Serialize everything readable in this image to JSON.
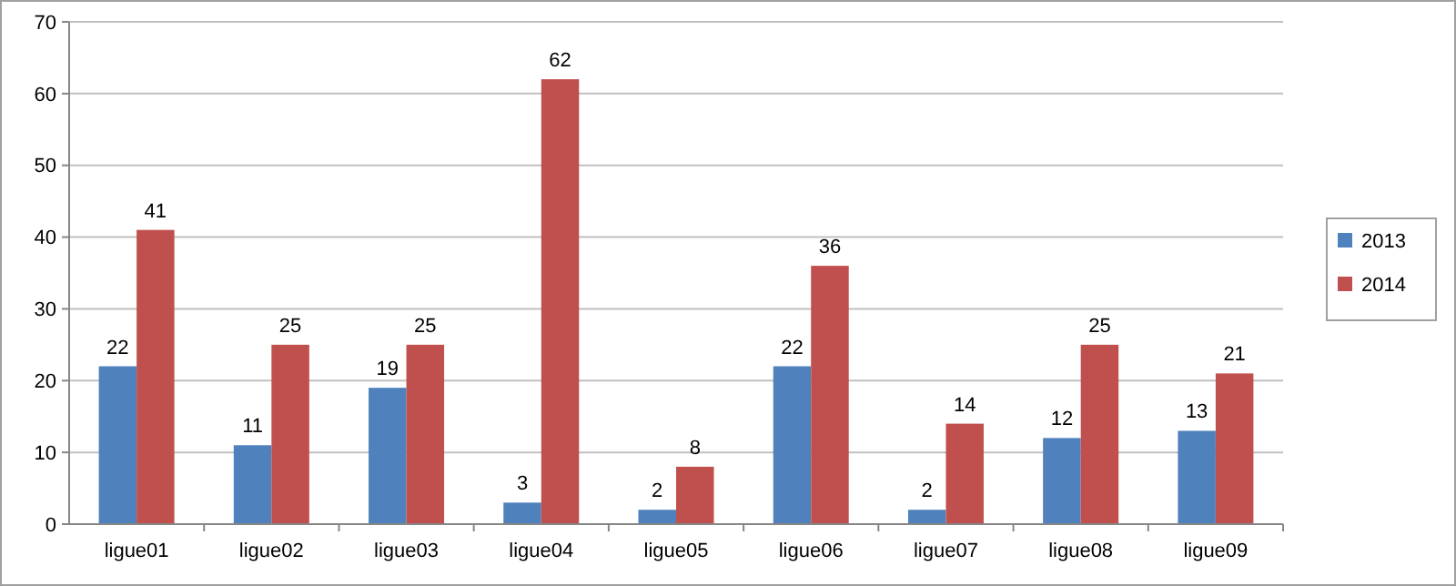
{
  "chart_data": {
    "type": "bar",
    "categories": [
      "ligue01",
      "ligue02",
      "ligue03",
      "ligue04",
      "ligue05",
      "ligue06",
      "ligue07",
      "ligue08",
      "ligue09"
    ],
    "series": [
      {
        "name": "2013",
        "color": "#4f81bd",
        "values": [
          22,
          11,
          19,
          3,
          2,
          22,
          2,
          12,
          13
        ]
      },
      {
        "name": "2014",
        "color": "#c0504d",
        "values": [
          41,
          25,
          25,
          62,
          8,
          36,
          14,
          25,
          21
        ]
      }
    ],
    "ylim": [
      0,
      70
    ],
    "yticks": [
      0,
      10,
      20,
      30,
      40,
      50,
      60,
      70
    ],
    "grid": "y",
    "legend": "right",
    "data_labels": true
  }
}
